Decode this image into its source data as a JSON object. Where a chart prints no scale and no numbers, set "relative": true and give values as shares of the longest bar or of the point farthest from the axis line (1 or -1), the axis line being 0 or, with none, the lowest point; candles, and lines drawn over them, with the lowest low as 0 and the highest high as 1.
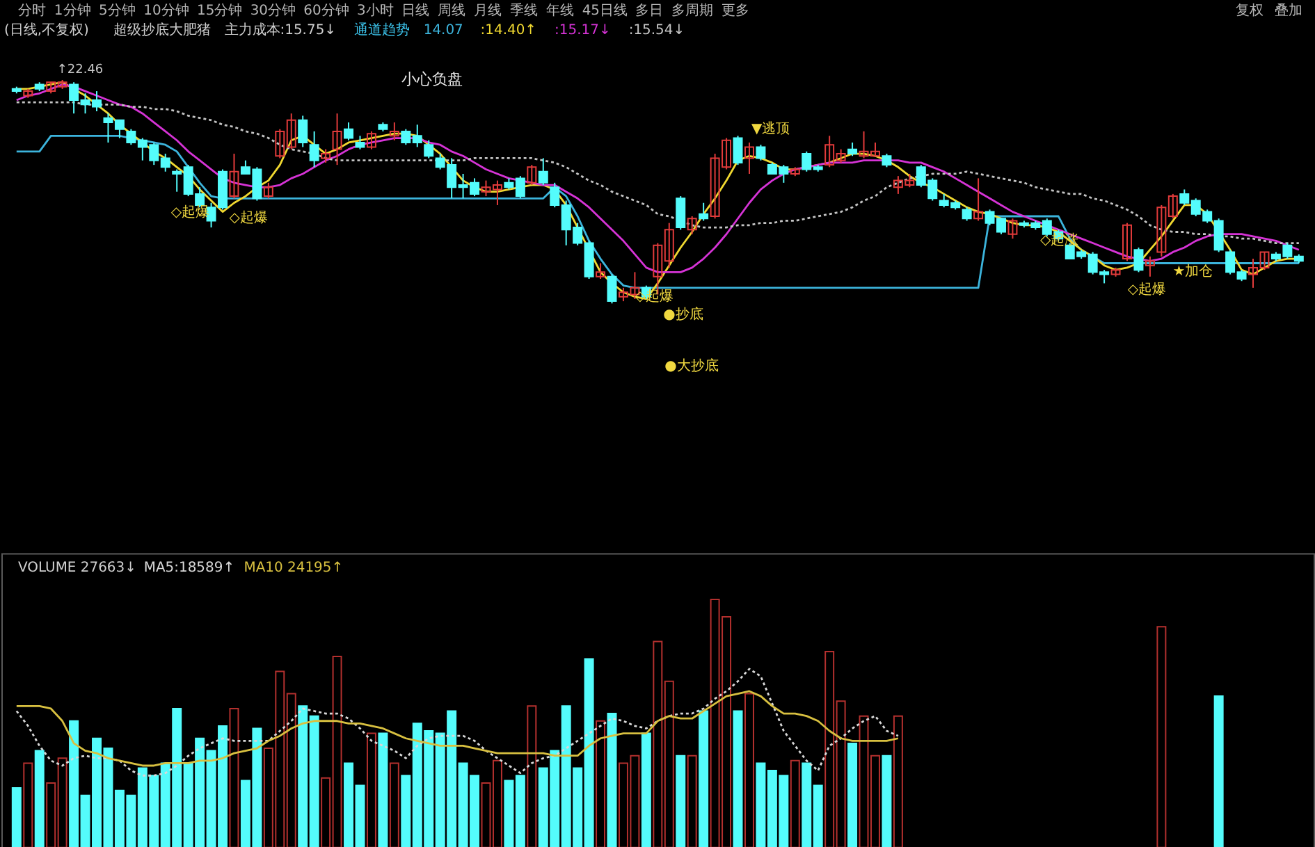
{
  "chart_data": [
    {
      "type": "other",
      "annotations": [
        "分时",
        "1分钟",
        "5分钟",
        "10分钟",
        "15分钟",
        "30分钟",
        "60分钟",
        "3小时",
        "日线",
        "周线",
        "月线",
        "季线",
        "年线",
        "45日线",
        "多日",
        "多周期",
        "更多",
        "复权",
        "叠加"
      ]
    },
    {
      "type": "candlestick",
      "title": "(日线,不复权)",
      "relative": true,
      "legend": "top left",
      "categories": [
        null,
        null,
        null,
        null,
        null,
        null,
        null,
        null,
        null,
        null,
        null,
        null,
        null,
        null,
        null,
        null,
        null,
        null,
        null,
        null,
        null,
        null,
        null,
        null,
        null,
        null,
        null,
        null,
        null,
        null,
        null,
        null,
        null,
        null,
        null,
        null,
        null,
        null,
        null,
        null,
        null,
        null,
        null,
        null,
        null,
        null,
        null,
        null,
        null,
        null,
        null,
        null,
        null,
        null,
        null,
        null,
        null,
        null,
        null,
        null,
        null,
        null,
        null,
        null,
        null,
        null,
        null,
        null,
        null,
        null,
        null,
        null,
        null,
        null,
        null,
        null,
        null,
        null,
        null,
        null,
        null,
        null,
        null,
        null,
        null,
        null,
        null,
        null,
        null,
        null,
        null,
        null,
        null,
        null,
        null,
        null,
        null,
        null,
        null,
        null,
        null,
        null,
        null,
        null,
        null,
        null,
        null,
        null,
        null,
        null,
        null,
        null,
        null
      ],
      "ohlc": [
        [
          0.96,
          0.97,
          0.94,
          0.95
        ],
        [
          0.93,
          0.96,
          0.92,
          0.95
        ],
        [
          0.98,
          0.99,
          0.95,
          0.96
        ],
        [
          0.95,
          0.99,
          0.94,
          0.99
        ],
        [
          0.97,
          1.0,
          0.96,
          0.99
        ],
        [
          0.98,
          0.99,
          0.85,
          0.91
        ],
        [
          0.91,
          0.94,
          0.85,
          0.89
        ],
        [
          0.91,
          0.95,
          0.86,
          0.88
        ],
        [
          0.83,
          0.85,
          0.72,
          0.81
        ],
        [
          0.82,
          0.82,
          0.74,
          0.78
        ],
        [
          0.77,
          0.78,
          0.71,
          0.72
        ],
        [
          0.73,
          0.74,
          0.64,
          0.7
        ],
        [
          0.71,
          0.72,
          0.62,
          0.64
        ],
        [
          0.65,
          0.67,
          0.59,
          0.61
        ],
        [
          0.59,
          0.6,
          0.5,
          0.58
        ],
        [
          0.61,
          0.62,
          0.48,
          0.49
        ],
        [
          0.49,
          0.52,
          0.43,
          0.44
        ],
        [
          0.43,
          0.45,
          0.34,
          0.37
        ],
        [
          0.59,
          0.6,
          0.42,
          0.43
        ],
        [
          0.48,
          0.67,
          0.47,
          0.59
        ],
        [
          0.61,
          0.64,
          0.58,
          0.58
        ],
        [
          0.6,
          0.61,
          0.46,
          0.47
        ],
        [
          0.48,
          0.54,
          0.47,
          0.52
        ],
        [
          0.66,
          0.78,
          0.65,
          0.77
        ],
        [
          0.7,
          0.85,
          0.69,
          0.82
        ],
        [
          0.82,
          0.84,
          0.7,
          0.72
        ],
        [
          0.71,
          0.77,
          0.61,
          0.64
        ],
        [
          0.65,
          0.69,
          0.63,
          0.67
        ],
        [
          0.69,
          0.85,
          0.62,
          0.77
        ],
        [
          0.78,
          0.81,
          0.73,
          0.74
        ],
        [
          0.72,
          0.75,
          0.69,
          0.7
        ],
        [
          0.7,
          0.77,
          0.69,
          0.76
        ],
        [
          0.8,
          0.81,
          0.77,
          0.78
        ],
        [
          0.75,
          0.81,
          0.73,
          0.77
        ],
        [
          0.77,
          0.78,
          0.71,
          0.72
        ],
        [
          0.75,
          0.8,
          0.7,
          0.72
        ],
        [
          0.71,
          0.73,
          0.65,
          0.66
        ],
        [
          0.65,
          0.67,
          0.6,
          0.61
        ],
        [
          0.62,
          0.65,
          0.47,
          0.52
        ],
        [
          0.53,
          0.58,
          0.47,
          0.52
        ],
        [
          0.54,
          0.56,
          0.48,
          0.49
        ],
        [
          0.5,
          0.55,
          0.48,
          0.52
        ],
        [
          0.51,
          0.55,
          0.44,
          0.53
        ],
        [
          0.54,
          0.56,
          0.51,
          0.52
        ],
        [
          0.56,
          0.57,
          0.47,
          0.48
        ],
        [
          0.54,
          0.62,
          0.53,
          0.61
        ],
        [
          0.59,
          0.65,
          0.53,
          0.54
        ],
        [
          0.52,
          0.54,
          0.43,
          0.44
        ],
        [
          0.44,
          0.46,
          0.26,
          0.33
        ],
        [
          0.34,
          0.36,
          0.26,
          0.27
        ],
        [
          0.27,
          0.28,
          0.11,
          0.12
        ],
        [
          0.12,
          0.18,
          0.11,
          0.14
        ],
        [
          0.12,
          0.13,
          0.0,
          0.01
        ],
        [
          0.03,
          0.07,
          0.01,
          0.05
        ],
        [
          0.04,
          0.14,
          0.02,
          0.07
        ],
        [
          0.07,
          0.08,
          0.02,
          0.03
        ],
        [
          0.12,
          0.27,
          0.04,
          0.26
        ],
        [
          0.19,
          0.36,
          0.16,
          0.33
        ],
        [
          0.47,
          0.48,
          0.33,
          0.34
        ],
        [
          0.33,
          0.39,
          0.31,
          0.38
        ],
        [
          0.4,
          0.45,
          0.37,
          0.38
        ],
        [
          0.39,
          0.67,
          0.38,
          0.65
        ],
        [
          0.61,
          0.74,
          0.6,
          0.73
        ],
        [
          0.74,
          0.75,
          0.62,
          0.63
        ],
        [
          0.65,
          0.72,
          0.58,
          0.7
        ],
        [
          0.7,
          0.71,
          0.64,
          0.65
        ],
        [
          0.62,
          0.63,
          0.58,
          0.58
        ],
        [
          0.61,
          0.62,
          0.54,
          0.58
        ],
        [
          0.58,
          0.61,
          0.57,
          0.6
        ],
        [
          0.67,
          0.68,
          0.59,
          0.6
        ],
        [
          0.61,
          0.62,
          0.59,
          0.6
        ],
        [
          0.62,
          0.75,
          0.61,
          0.71
        ],
        [
          0.64,
          0.69,
          0.63,
          0.67
        ],
        [
          0.69,
          0.72,
          0.66,
          0.67
        ],
        [
          0.66,
          0.77,
          0.65,
          0.68
        ],
        [
          0.66,
          0.72,
          0.66,
          0.68
        ],
        [
          0.66,
          0.67,
          0.61,
          0.62
        ],
        [
          0.52,
          0.57,
          0.49,
          0.55
        ],
        [
          0.53,
          0.58,
          0.52,
          0.55
        ],
        [
          0.61,
          0.62,
          0.52,
          0.53
        ],
        [
          0.55,
          0.56,
          0.46,
          0.47
        ],
        [
          0.46,
          0.49,
          0.43,
          0.44
        ],
        [
          0.45,
          0.46,
          0.42,
          0.43
        ],
        [
          0.42,
          0.43,
          0.37,
          0.38
        ],
        [
          0.38,
          0.56,
          0.37,
          0.41
        ],
        [
          0.41,
          0.42,
          0.35,
          0.36
        ],
        [
          0.38,
          0.38,
          0.31,
          0.32
        ],
        [
          0.31,
          0.38,
          0.29,
          0.37
        ],
        [
          0.36,
          0.37,
          0.34,
          0.35
        ],
        [
          0.36,
          0.37,
          0.33,
          0.34
        ],
        [
          0.37,
          0.38,
          0.3,
          0.31
        ],
        [
          0.32,
          0.33,
          0.28,
          0.29
        ],
        [
          0.26,
          0.27,
          0.2,
          0.2
        ],
        [
          0.23,
          0.24,
          0.2,
          0.21
        ],
        [
          0.22,
          0.23,
          0.13,
          0.14
        ],
        [
          0.14,
          0.15,
          0.09,
          0.13
        ],
        [
          0.13,
          0.16,
          0.12,
          0.15
        ],
        [
          0.2,
          0.36,
          0.19,
          0.35
        ],
        [
          0.24,
          0.25,
          0.14,
          0.15
        ],
        [
          0.17,
          0.21,
          0.12,
          0.19
        ],
        [
          0.23,
          0.44,
          0.21,
          0.43
        ],
        [
          0.39,
          0.49,
          0.38,
          0.48
        ],
        [
          0.49,
          0.51,
          0.44,
          0.45
        ],
        [
          0.46,
          0.47,
          0.39,
          0.4
        ],
        [
          0.41,
          0.42,
          0.36,
          0.37
        ],
        [
          0.37,
          0.38,
          0.23,
          0.24
        ],
        [
          0.23,
          0.24,
          0.13,
          0.14
        ],
        [
          0.14,
          0.15,
          0.1,
          0.11
        ],
        [
          0.13,
          0.2,
          0.07,
          0.16
        ],
        [
          0.16,
          0.23,
          0.15,
          0.23
        ],
        [
          0.22,
          0.23,
          0.19,
          0.2
        ],
        [
          0.26,
          0.27,
          0.2,
          0.21
        ],
        [
          0.21,
          0.22,
          0.18,
          0.19
        ]
      ],
      "colors": [
        "#54fcfc",
        "#e23b3b",
        "#54fcfc",
        "#e23b3b",
        "#e23b3b",
        "#54fcfc",
        "#54fcfc",
        "#54fcfc",
        "#54fcfc",
        "#54fcfc",
        "#54fcfc",
        "#54fcfc",
        "#54fcfc",
        "#54fcfc",
        "#54fcfc",
        "#54fcfc",
        "#54fcfc",
        "#54fcfc",
        "#54fcfc",
        "#e23b3b",
        "#54fcfc",
        "#54fcfc",
        "#e23b3b",
        "#e23b3b",
        "#e23b3b",
        "#54fcfc",
        "#54fcfc",
        "#e23b3b",
        "#e23b3b",
        "#54fcfc",
        "#54fcfc",
        "#e23b3b",
        "#54fcfc",
        "#e23b3b",
        "#54fcfc",
        "#54fcfc",
        "#54fcfc",
        "#54fcfc",
        "#54fcfc",
        "#54fcfc",
        "#54fcfc",
        "#e23b3b",
        "#e23b3b",
        "#54fcfc",
        "#54fcfc",
        "#e23b3b",
        "#54fcfc",
        "#54fcfc",
        "#54fcfc",
        "#54fcfc",
        "#54fcfc",
        "#e23b3b",
        "#54fcfc",
        "#e23b3b",
        "#e23b3b",
        "#54fcfc",
        "#e23b3b",
        "#e23b3b",
        "#54fcfc",
        "#e23b3b",
        "#54fcfc",
        "#e23b3b",
        "#e23b3b",
        "#54fcfc",
        "#e23b3b",
        "#54fcfc",
        "#54fcfc",
        "#54fcfc",
        "#e23b3b",
        "#54fcfc",
        "#54fcfc",
        "#e23b3b",
        "#e23b3b",
        "#54fcfc",
        "#e23b3b",
        "#e23b3b",
        "#54fcfc",
        "#e23b3b",
        "#e23b3b",
        "#54fcfc",
        "#54fcfc",
        "#54fcfc",
        "#54fcfc",
        "#54fcfc",
        "#e23b3b",
        "#54fcfc",
        "#54fcfc",
        "#e23b3b",
        "#54fcfc",
        "#54fcfc",
        "#54fcfc",
        "#54fcfc",
        "#54fcfc",
        "#54fcfc",
        "#54fcfc",
        "#54fcfc",
        "#e23b3b",
        "#e23b3b",
        "#54fcfc",
        "#e23b3b",
        "#e23b3b",
        "#e23b3b",
        "#54fcfc",
        "#54fcfc",
        "#54fcfc",
        "#54fcfc",
        "#54fcfc",
        "#54fcfc",
        "#e23b3b",
        "#e23b3b",
        "#54fcfc",
        "#54fcfc",
        "#54fcfc"
      ],
      "series": [
        {
          "type": "line",
          "name": "14.07",
          "color": "#3cb4dc",
          "values": [
            0.68,
            0.68,
            0.68,
            0.75,
            0.75,
            0.75,
            0.75,
            0.75,
            0.75,
            0.75,
            0.74,
            0.73,
            0.72,
            0.71,
            0.68,
            0.61,
            0.54,
            0.48,
            0.47,
            0.47,
            0.47,
            0.47,
            0.47,
            0.47,
            0.47,
            0.47,
            0.47,
            0.47,
            0.47,
            0.47,
            0.47,
            0.47,
            0.47,
            0.47,
            0.47,
            0.47,
            0.47,
            0.47,
            0.47,
            0.47,
            0.47,
            0.47,
            0.47,
            0.47,
            0.47,
            0.47,
            0.47,
            0.52,
            0.48,
            0.39,
            0.28,
            0.2,
            0.13,
            0.08,
            0.07,
            0.07,
            0.07,
            0.07,
            0.07,
            0.07,
            0.07,
            0.07,
            0.07,
            0.07,
            0.07,
            0.07,
            0.07,
            0.07,
            0.07,
            0.07,
            0.07,
            0.07,
            0.07,
            0.07,
            0.07,
            0.07,
            0.07,
            0.07,
            0.07,
            0.07,
            0.07,
            0.07,
            0.07,
            0.07,
            0.07,
            0.39,
            0.39,
            0.39,
            0.39,
            0.39,
            0.39,
            0.39,
            0.29,
            0.24,
            0.21,
            0.18,
            0.18,
            0.18,
            0.18,
            0.18,
            0.18,
            0.18,
            0.18,
            0.18,
            0.18,
            0.18,
            0.18,
            0.18,
            0.18,
            0.18,
            0.18,
            0.18,
            0.18
          ]
        },
        {
          "type": "line",
          "name": ":14.40↑",
          "color": "#f0d830",
          "values": [
            0.96,
            0.96,
            0.97,
            0.98,
            0.99,
            0.96,
            0.93,
            0.89,
            0.85,
            0.8,
            0.76,
            0.72,
            0.68,
            0.65,
            0.61,
            0.57,
            0.51,
            0.46,
            0.41,
            0.45,
            0.48,
            0.52,
            0.55,
            0.62,
            0.73,
            0.75,
            0.71,
            0.67,
            0.69,
            0.72,
            0.73,
            0.74,
            0.75,
            0.76,
            0.76,
            0.75,
            0.71,
            0.67,
            0.61,
            0.55,
            0.52,
            0.5,
            0.5,
            0.51,
            0.52,
            0.53,
            0.53,
            0.51,
            0.44,
            0.34,
            null,
            0.14,
            0.09,
            0.05,
            0.03,
            0.02,
            0.09,
            0.17,
            0.25,
            0.32,
            0.4,
            0.47,
            0.55,
            0.64,
            0.66,
            0.65,
            0.63,
            0.6,
            0.6,
            0.61,
            0.62,
            0.63,
            0.65,
            0.67,
            0.67,
            0.66,
            0.64,
            0.61,
            0.57,
            0.54,
            0.52,
            0.49,
            0.46,
            0.43,
            0.41,
            0.4,
            0.38,
            0.36,
            0.35,
            0.35,
            0.34,
            0.32,
            0.28,
            0.24,
            0.21,
            0.17,
            0.15,
            0.16,
            0.18,
            0.24,
            0.3,
            0.37,
            0.44,
            0.44,
            0.4,
            null,
            0.24,
            0.15,
            0.13,
            0.16,
            0.19,
            0.2,
            0.2
          ]
        },
        {
          "type": "line",
          "name": ":15.17↓",
          "color": "#d633d6",
          "values": [
            0.91,
            0.93,
            0.94,
            0.96,
            0.98,
            0.97,
            0.95,
            0.93,
            0.91,
            0.89,
            0.88,
            0.85,
            0.81,
            0.77,
            0.73,
            0.68,
            0.64,
            0.6,
            0.56,
            0.54,
            0.53,
            0.52,
            0.52,
            0.53,
            0.56,
            0.58,
            0.61,
            0.64,
            0.66,
            0.69,
            0.71,
            0.72,
            0.73,
            0.74,
            0.74,
            0.74,
            0.72,
            0.71,
            0.68,
            0.66,
            0.63,
            0.6,
            0.58,
            0.56,
            0.55,
            0.54,
            0.53,
            0.53,
            0.5,
            0.47,
            0.43,
            0.38,
            0.33,
            0.28,
            0.22,
            0.16,
            0.14,
            0.14,
            0.14,
            0.16,
            0.2,
            0.25,
            0.31,
            0.38,
            0.45,
            0.51,
            0.55,
            0.58,
            0.6,
            0.61,
            0.62,
            0.63,
            0.63,
            0.63,
            0.64,
            0.64,
            0.64,
            0.64,
            0.63,
            0.63,
            0.61,
            0.59,
            0.56,
            0.53,
            0.5,
            0.47,
            0.44,
            0.41,
            0.39,
            0.37,
            0.35,
            0.33,
            0.31,
            0.29,
            0.27,
            0.25,
            0.23,
            0.21,
            0.2,
            0.19,
            0.2,
            0.23,
            0.25,
            0.28,
            0.3,
            0.31,
            0.31,
            0.31,
            0.3,
            0.29,
            0.28,
            0.26,
            0.24
          ]
        },
        {
          "type": "line",
          "name": ":15.54↓",
          "color": "#c4c4c4",
          "line_style": "dotted",
          "values": [
            0.9,
            0.9,
            0.9,
            0.9,
            0.9,
            0.9,
            0.89,
            0.89,
            0.89,
            0.89,
            0.88,
            0.88,
            0.87,
            0.87,
            0.86,
            0.84,
            0.83,
            0.82,
            0.8,
            0.79,
            0.77,
            0.76,
            0.74,
            0.71,
            0.69,
            0.68,
            0.67,
            0.65,
            0.64,
            0.64,
            0.64,
            0.64,
            0.64,
            0.64,
            0.64,
            0.64,
            0.64,
            0.64,
            0.64,
            0.64,
            0.65,
            0.65,
            0.65,
            0.65,
            0.65,
            0.65,
            0.64,
            0.63,
            0.61,
            0.58,
            0.55,
            0.53,
            0.5,
            0.48,
            0.46,
            0.44,
            0.4,
            0.39,
            null,
            0.35,
            0.34,
            0.34,
            0.34,
            0.35,
            0.35,
            0.36,
            0.36,
            0.37,
            0.37,
            0.38,
            0.39,
            0.4,
            0.41,
            0.43,
            0.46,
            0.48,
            0.52,
            0.54,
            0.56,
            0.57,
            0.58,
            0.58,
            0.58,
            0.59,
            0.58,
            0.57,
            0.56,
            0.55,
            0.54,
            0.52,
            0.51,
            0.5,
            0.49,
            0.49,
            0.47,
            0.46,
            0.44,
            0.42,
            0.39,
            0.35,
            0.33,
            0.32,
            0.32,
            0.31,
            0.31,
            0.3,
            0.3,
            0.29,
            0.29,
            0.28,
            0.27,
            0.27,
            0.27
          ]
        }
      ],
      "annotations": [
        "超级抄底大肥猪",
        "主力成本:15.75↓",
        "通道趋势",
        "↑22.46",
        "小心负盘",
        "◇起爆",
        "◇起爆",
        "◇起爆",
        "●抄底",
        "●大抄底",
        "▼逃顶",
        "◇起涨",
        "◇起爆",
        "★加仓"
      ]
    },
    {
      "type": "bar",
      "relative": true,
      "legend": "top left",
      "categories": [
        null,
        null,
        null,
        null,
        null,
        null,
        null,
        null,
        null,
        null,
        null,
        null,
        null,
        null,
        null,
        null,
        null,
        null,
        null,
        null,
        null,
        null,
        null,
        null,
        null,
        null,
        null,
        null,
        null,
        null,
        null,
        null,
        null,
        null,
        null,
        null,
        null,
        null,
        null,
        null,
        null,
        null,
        null,
        null,
        null,
        null,
        null,
        null,
        null,
        null,
        null,
        null,
        null,
        null,
        null,
        null,
        null,
        null,
        null,
        null,
        null,
        null,
        null,
        null,
        null,
        null,
        null,
        null,
        null,
        null,
        null,
        null,
        null,
        null,
        null,
        null,
        null,
        null,
        null,
        null,
        null,
        null,
        null,
        null,
        null,
        null,
        null,
        null,
        null,
        null,
        null,
        null,
        null,
        null,
        null,
        null,
        null,
        null,
        null,
        null,
        null,
        null,
        null,
        null,
        null,
        null,
        null,
        null,
        null,
        null,
        null,
        null,
        null
      ],
      "series": [
        {
          "type": "bar",
          "values": [
            0.24,
            0.34,
            0.39,
            0.26,
            0.36,
            0.51,
            0.21,
            0.44,
            0.4,
            0.23,
            0.21,
            0.32,
            0.29,
            0.34,
            0.56,
            0.34,
            0.44,
            0.39,
            0.49,
            0.56,
            0.27,
            0.48,
            0.4,
            0.71,
            0.62,
            0.57,
            0.53,
            0.28,
            0.77,
            0.34,
            0.25,
            0.46,
            0.46,
            0.34,
            0.29,
            0.5,
            0.47,
            0.46,
            0.55,
            0.34,
            0.29,
            0.26,
            0.35,
            0.27,
            0.29,
            0.57,
            0.32,
            0.39,
            0.57,
            0.32,
            0.76,
            0.51,
            0.54,
            0.34,
            0.37,
            0.46,
            0.83,
            0.67,
            0.37,
            0.37,
            0.55,
            1.0,
            0.93,
            0.55,
            0.62,
            0.34,
            0.31,
            0.29,
            0.35,
            0.34,
            0.25,
            0.79,
            0.59,
            0.42,
            0.53,
            0.37,
            0.37,
            0.53,
            null,
            null,
            null,
            null,
            null,
            null,
            null,
            null,
            null,
            null,
            null,
            null,
            null,
            null,
            null,
            null,
            null,
            null,
            null,
            null,
            null,
            null,
            0.89,
            null,
            null,
            null,
            null,
            0.61,
            null,
            null,
            null,
            null,
            null,
            null,
            null
          ],
          "colors": [
            "#54fcfc",
            "#b3302e",
            "#54fcfc",
            "#b3302e",
            "#b3302e",
            "#54fcfc",
            "#54fcfc",
            "#54fcfc",
            "#54fcfc",
            "#54fcfc",
            "#54fcfc",
            "#54fcfc",
            "#54fcfc",
            "#54fcfc",
            "#54fcfc",
            "#54fcfc",
            "#54fcfc",
            "#54fcfc",
            "#54fcfc",
            "#b3302e",
            "#54fcfc",
            "#54fcfc",
            "#b3302e",
            "#b3302e",
            "#b3302e",
            "#54fcfc",
            "#54fcfc",
            "#b3302e",
            "#b3302e",
            "#54fcfc",
            "#54fcfc",
            "#b3302e",
            "#54fcfc",
            "#b3302e",
            "#54fcfc",
            "#54fcfc",
            "#54fcfc",
            "#54fcfc",
            "#54fcfc",
            "#54fcfc",
            "#54fcfc",
            "#b3302e",
            "#b3302e",
            "#54fcfc",
            "#54fcfc",
            "#b3302e",
            "#54fcfc",
            "#54fcfc",
            "#54fcfc",
            "#54fcfc",
            "#54fcfc",
            "#b3302e",
            "#54fcfc",
            "#b3302e",
            "#b3302e",
            "#54fcfc",
            "#b3302e",
            "#b3302e",
            "#54fcfc",
            "#b3302e",
            "#54fcfc",
            "#b3302e",
            "#b3302e",
            "#54fcfc",
            "#b3302e",
            "#54fcfc",
            "#54fcfc",
            "#54fcfc",
            "#b3302e",
            "#54fcfc",
            "#54fcfc",
            "#b3302e",
            "#b3302e",
            "#54fcfc",
            "#b3302e",
            "#b3302e",
            "#54fcfc",
            "#b3302e",
            "#b3302e",
            "#54fcfc",
            "#54fcfc",
            "#54fcfc",
            "#54fcfc",
            "#54fcfc",
            "#b3302e",
            "#54fcfc",
            "#54fcfc",
            "#b3302e",
            "#54fcfc",
            "#54fcfc",
            "#54fcfc",
            "#54fcfc",
            "#54fcfc",
            "#54fcfc",
            "#54fcfc",
            "#54fcfc",
            "#b3302e",
            "#b3302e",
            "#54fcfc",
            "#b3302e",
            "#b3302e",
            "#b3302e",
            "#54fcfc",
            "#54fcfc",
            "#54fcfc",
            "#54fcfc",
            "#54fcfc",
            "#54fcfc",
            "#b3302e",
            "#b3302e",
            "#54fcfc",
            "#54fcfc",
            "#54fcfc"
          ]
        },
        {
          "type": "line",
          "name": "MA5:18589↑",
          "color": "#d8d8d8",
          "line_style": "dotted",
          "values": [
            0.55,
            0.49,
            0.41,
            0.35,
            0.33,
            0.36,
            0.37,
            0.36,
            0.36,
            0.35,
            0.31,
            0.29,
            0.29,
            0.3,
            0.33,
            0.37,
            0.4,
            0.42,
            0.44,
            0.43,
            0.43,
            0.43,
            0.43,
            0.47,
            0.51,
            0.56,
            0.55,
            0.54,
            0.54,
            0.52,
            0.48,
            0.43,
            0.41,
            0.39,
            0.36,
            0.41,
            0.44,
            0.45,
            0.45,
            0.45,
            0.43,
            0.39,
            0.36,
            0.33,
            0.3,
            0.34,
            0.36,
            0.37,
            0.4,
            0.43,
            0.46,
            0.49,
            0.52,
            0.51,
            0.49,
            0.48,
            0.51,
            0.53,
            0.54,
            0.54,
            0.56,
            0.6,
            0.63,
            0.67,
            0.72,
            0.69,
            0.58,
            0.47,
            0.41,
            0.35,
            0.31,
            0.41,
            0.44,
            0.48,
            0.51,
            0.53,
            0.47,
            0.45,
            null,
            null,
            null,
            null,
            null,
            null,
            null,
            null,
            null,
            null,
            null,
            null,
            null,
            null,
            null,
            null,
            null,
            null,
            null,
            null,
            null,
            null,
            null,
            null,
            null,
            null,
            null,
            null,
            null,
            null,
            null,
            null,
            null,
            null,
            null
          ]
        },
        {
          "type": "line",
          "name": "MA10 24195↑",
          "color": "#d8c040",
          "values": [
            0.57,
            0.57,
            0.57,
            0.56,
            0.51,
            0.42,
            0.39,
            0.38,
            0.36,
            0.35,
            0.34,
            0.33,
            0.33,
            0.34,
            0.34,
            0.34,
            0.35,
            0.35,
            0.36,
            0.38,
            0.39,
            0.4,
            0.43,
            0.45,
            0.48,
            0.5,
            0.51,
            0.51,
            0.51,
            0.5,
            0.5,
            0.49,
            0.48,
            0.46,
            0.44,
            0.43,
            0.42,
            0.41,
            0.41,
            0.41,
            0.4,
            0.39,
            0.38,
            0.38,
            0.38,
            0.38,
            0.38,
            0.37,
            0.37,
            0.37,
            0.41,
            0.44,
            0.45,
            0.46,
            0.46,
            0.46,
            0.51,
            0.53,
            0.52,
            0.52,
            0.55,
            0.58,
            0.61,
            0.62,
            0.63,
            0.61,
            0.57,
            0.54,
            0.54,
            0.53,
            0.51,
            0.47,
            0.44,
            0.43,
            0.43,
            0.43,
            0.43,
            0.44,
            null,
            null,
            null,
            null,
            null,
            null,
            null,
            null,
            null,
            null,
            null,
            null,
            null,
            null,
            null,
            null,
            null,
            null,
            null,
            null,
            null,
            null,
            null,
            null,
            null,
            null,
            null,
            null,
            null,
            null,
            null,
            null,
            null,
            null,
            null
          ]
        }
      ],
      "annotations": [
        "VOLUME 27663↓"
      ]
    }
  ]
}
